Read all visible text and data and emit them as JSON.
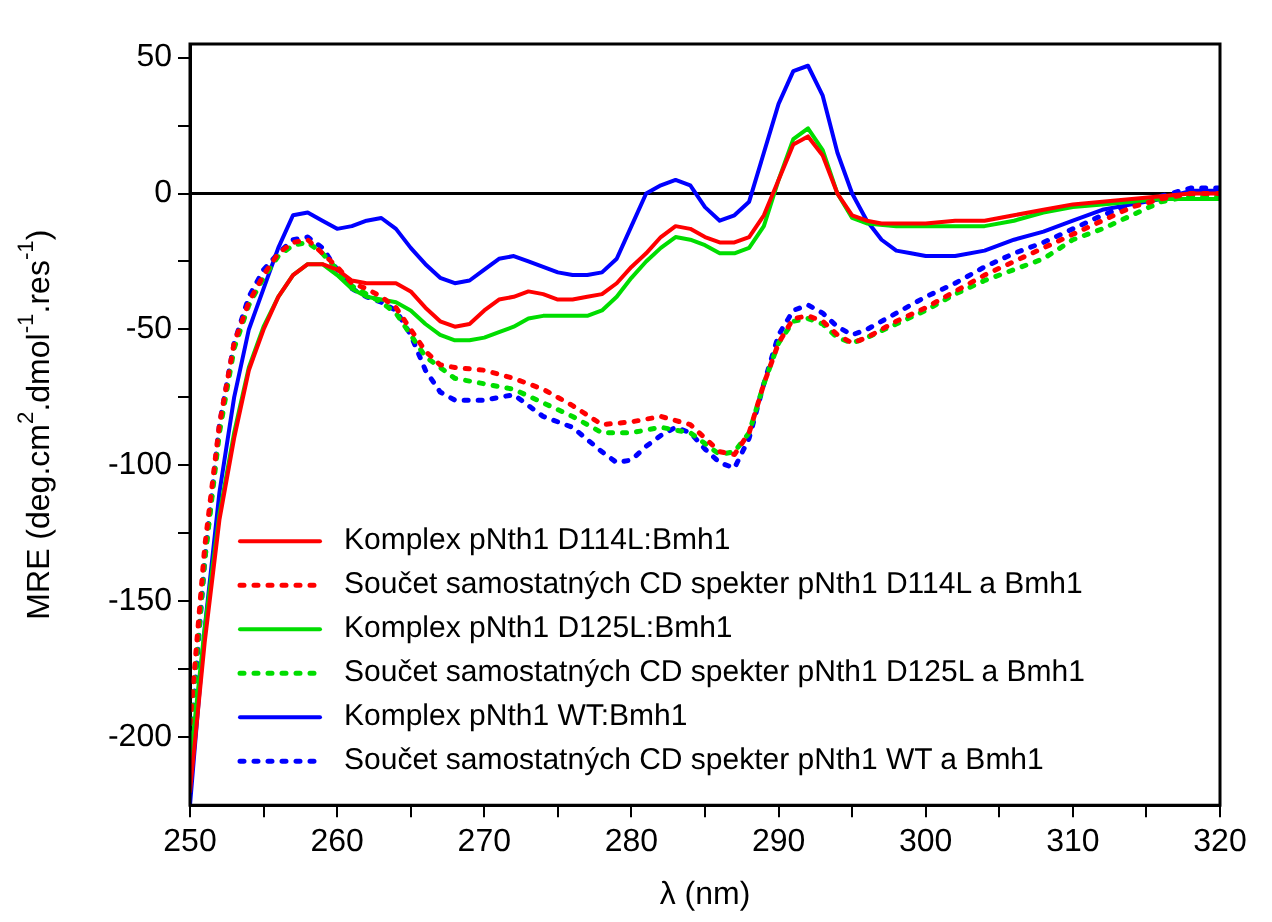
{
  "chart_data": {
    "type": "line",
    "xlabel": "λ (nm)",
    "ylabel": "MRE (deg.cm$^{2}$.dmol$^{-1}$.res$^{-1}$)",
    "xlim": [
      250,
      320
    ],
    "xticks": [
      250,
      {
        "value": 255,
        "label": null
      },
      260,
      {
        "value": 265,
        "label": null
      },
      270,
      {
        "value": 275,
        "label": null
      },
      280,
      {
        "value": 285,
        "label": null
      },
      290,
      {
        "value": 295,
        "label": null
      },
      300,
      {
        "value": 305,
        "label": null
      },
      310,
      {
        "value": 315,
        "label": null
      },
      320
    ],
    "ylim": [
      -225,
      55
    ],
    "yticks": [
      -200,
      {
        "value": -175,
        "label": null
      },
      -150,
      {
        "value": -125,
        "label": null
      },
      -100,
      {
        "value": -75,
        "label": null
      },
      -50,
      {
        "value": -25,
        "label": null
      },
      0,
      {
        "value": 25,
        "label": null
      },
      50
    ],
    "grid": false,
    "legend": "bottom left",
    "marker": "none",
    "ref_lines": [
      {
        "axis": "y",
        "value": 0,
        "color": "#000000"
      }
    ],
    "series": [
      {
        "name": "Komplex pNth1 D114L:Bmh1",
        "color": "#ff0000",
        "line_style": "solid",
        "x": [
          250,
          251,
          252,
          253,
          254,
          255,
          256,
          257,
          258,
          259,
          260,
          261,
          262,
          263,
          264,
          265,
          266,
          267,
          268,
          269,
          270,
          271,
          272,
          273,
          274,
          275,
          276,
          277,
          278,
          279,
          280,
          281,
          282,
          283,
          284,
          285,
          286,
          287,
          288,
          289,
          290,
          291,
          292,
          293,
          294,
          295,
          296,
          297,
          298,
          300,
          302,
          304,
          306,
          308,
          310,
          312,
          314,
          316,
          318,
          320
        ],
        "values": [
          -220,
          -165,
          -120,
          -90,
          -65,
          -50,
          -38,
          -30,
          -26,
          -26,
          -28,
          -32,
          -33,
          -33,
          -33,
          -36,
          -42,
          -47,
          -49,
          -48,
          -43,
          -39,
          -38,
          -36,
          -37,
          -39,
          -39,
          -38,
          -37,
          -33,
          -27,
          -22,
          -16,
          -12,
          -13,
          -16,
          -18,
          -18,
          -16,
          -8,
          5,
          18,
          21,
          14,
          0,
          -8,
          -10,
          -11,
          -11,
          -11,
          -10,
          -10,
          -8,
          -6,
          -4,
          -3,
          -2,
          -1,
          0,
          0
        ]
      },
      {
        "name": "Součet samostatných CD spekter pNth1 D114L a Bmh1",
        "color": "#ff0000",
        "line_style": "dotted",
        "x": [
          250,
          251,
          252,
          253,
          254,
          255,
          256,
          257,
          258,
          259,
          260,
          261,
          262,
          263,
          264,
          265,
          266,
          267,
          268,
          270,
          272,
          274,
          276,
          278,
          280,
          282,
          284,
          285,
          286,
          287,
          288,
          289,
          290,
          291,
          292,
          293,
          294,
          295,
          296,
          298,
          300,
          302,
          304,
          306,
          308,
          310,
          312,
          314,
          316,
          318,
          320
        ],
        "values": [
          -195,
          -130,
          -85,
          -55,
          -40,
          -30,
          -22,
          -18,
          -17,
          -22,
          -27,
          -33,
          -35,
          -38,
          -42,
          -50,
          -58,
          -63,
          -64,
          -65,
          -68,
          -72,
          -78,
          -85,
          -84,
          -82,
          -85,
          -90,
          -95,
          -96,
          -88,
          -70,
          -55,
          -46,
          -45,
          -47,
          -52,
          -55,
          -53,
          -47,
          -42,
          -36,
          -30,
          -25,
          -20,
          -15,
          -10,
          -5,
          -2,
          0,
          0
        ]
      },
      {
        "name": "Komplex pNth1 D125L:Bmh1",
        "color": "#00dd00",
        "line_style": "solid",
        "x": [
          250,
          251,
          252,
          253,
          254,
          255,
          256,
          257,
          258,
          259,
          260,
          261,
          262,
          263,
          264,
          265,
          266,
          267,
          268,
          269,
          270,
          271,
          272,
          273,
          274,
          275,
          276,
          277,
          278,
          279,
          280,
          281,
          282,
          283,
          284,
          285,
          286,
          287,
          288,
          289,
          290,
          291,
          292,
          293,
          294,
          295,
          296,
          298,
          300,
          302,
          304,
          306,
          308,
          310,
          312,
          314,
          316,
          318,
          320
        ],
        "values": [
          -210,
          -160,
          -118,
          -88,
          -64,
          -49,
          -38,
          -30,
          -26,
          -26,
          -30,
          -35,
          -38,
          -39,
          -40,
          -43,
          -48,
          -52,
          -54,
          -54,
          -53,
          -51,
          -49,
          -46,
          -45,
          -45,
          -45,
          -45,
          -43,
          -38,
          -31,
          -25,
          -20,
          -16,
          -17,
          -19,
          -22,
          -22,
          -20,
          -12,
          5,
          20,
          24,
          16,
          0,
          -9,
          -11,
          -12,
          -12,
          -12,
          -12,
          -10,
          -7,
          -5,
          -4,
          -3,
          -2,
          -2,
          -2
        ]
      },
      {
        "name": "Součet samostatných CD spekter pNth1 D125L a Bmh1",
        "color": "#00dd00",
        "line_style": "dotted",
        "x": [
          250,
          251,
          252,
          253,
          254,
          255,
          256,
          257,
          258,
          259,
          260,
          261,
          262,
          263,
          264,
          265,
          266,
          268,
          270,
          272,
          274,
          276,
          278,
          280,
          282,
          284,
          285,
          286,
          287,
          288,
          289,
          290,
          291,
          292,
          293,
          294,
          295,
          296,
          298,
          300,
          302,
          304,
          306,
          308,
          310,
          312,
          314,
          316,
          318,
          320
        ],
        "values": [
          -200,
          -135,
          -88,
          -57,
          -41,
          -31,
          -23,
          -19,
          -18,
          -22,
          -28,
          -34,
          -37,
          -40,
          -44,
          -52,
          -60,
          -68,
          -70,
          -72,
          -77,
          -82,
          -88,
          -88,
          -86,
          -88,
          -92,
          -96,
          -95,
          -88,
          -70,
          -55,
          -47,
          -46,
          -48,
          -53,
          -55,
          -53,
          -48,
          -43,
          -37,
          -32,
          -28,
          -24,
          -17,
          -13,
          -8,
          -3,
          -1,
          -1
        ]
      },
      {
        "name": "Komplex pNth1 WT:Bmh1",
        "color": "#0000ff",
        "line_style": "solid",
        "x": [
          250,
          251,
          252,
          253,
          254,
          255,
          256,
          257,
          258,
          259,
          260,
          261,
          262,
          263,
          264,
          265,
          266,
          267,
          268,
          269,
          270,
          271,
          272,
          273,
          274,
          275,
          276,
          277,
          278,
          279,
          280,
          281,
          282,
          283,
          284,
          285,
          286,
          287,
          288,
          289,
          290,
          291,
          292,
          293,
          294,
          295,
          296,
          297,
          298,
          299,
          300,
          302,
          304,
          306,
          308,
          310,
          312,
          314,
          316,
          318,
          320
        ],
        "values": [
          -225,
          -160,
          -110,
          -75,
          -50,
          -35,
          -20,
          -8,
          -7,
          -10,
          -13,
          -12,
          -10,
          -9,
          -13,
          -20,
          -26,
          -31,
          -33,
          -32,
          -28,
          -24,
          -23,
          -25,
          -27,
          -29,
          -30,
          -30,
          -29,
          -24,
          -12,
          0,
          3,
          5,
          3,
          -5,
          -10,
          -8,
          -3,
          15,
          33,
          45,
          47,
          36,
          15,
          0,
          -10,
          -17,
          -21,
          -22,
          -23,
          -23,
          -21,
          -17,
          -14,
          -10,
          -6,
          -4,
          -2,
          1,
          1
        ]
      },
      {
        "name": "Součet samostatných CD spekter pNth1 WT a Bmh1",
        "color": "#0000ff",
        "line_style": "dotted",
        "x": [
          250,
          251,
          252,
          253,
          254,
          255,
          256,
          257,
          258,
          259,
          260,
          261,
          262,
          263,
          264,
          265,
          266,
          267,
          268,
          270,
          272,
          274,
          276,
          278,
          279,
          280,
          281,
          282,
          283,
          284,
          285,
          286,
          287,
          288,
          289,
          290,
          291,
          292,
          293,
          294,
          295,
          296,
          298,
          300,
          302,
          304,
          306,
          308,
          310,
          312,
          314,
          316,
          318,
          320
        ],
        "values": [
          -205,
          -135,
          -85,
          -55,
          -38,
          -28,
          -22,
          -17,
          -16,
          -20,
          -28,
          -35,
          -38,
          -40,
          -43,
          -52,
          -65,
          -73,
          -76,
          -76,
          -74,
          -82,
          -86,
          -95,
          -99,
          -98,
          -93,
          -89,
          -86,
          -88,
          -94,
          -99,
          -101,
          -90,
          -70,
          -52,
          -43,
          -41,
          -44,
          -49,
          -52,
          -50,
          -44,
          -38,
          -33,
          -27,
          -22,
          -18,
          -13,
          -8,
          -4,
          -1,
          2,
          2
        ]
      }
    ]
  }
}
